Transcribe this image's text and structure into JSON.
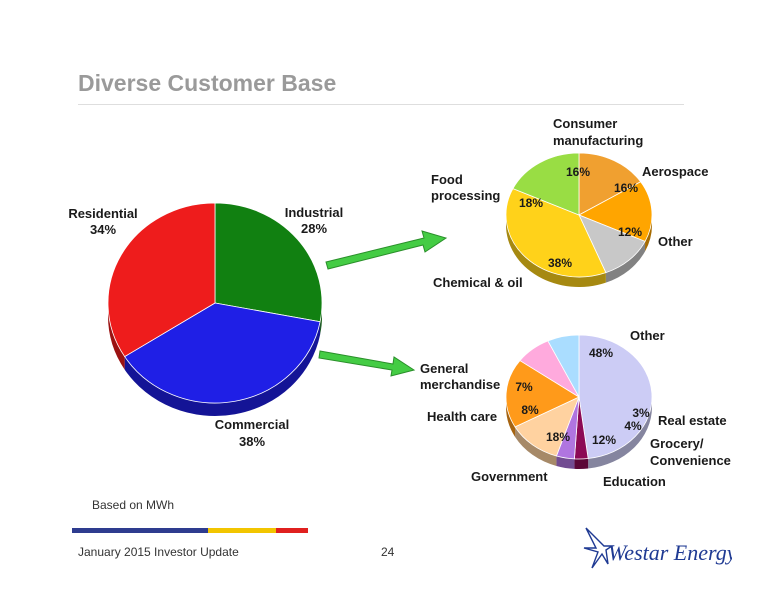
{
  "slide": {
    "title": "Diverse Customer Base",
    "note": "Based on MWh",
    "footer_left": "January 2015 Investor Update",
    "page_number": "24",
    "brand_bar_colors": [
      "#2e3c8f",
      "#f2c500",
      "#e0201f"
    ],
    "logo_text": "Westar Energy."
  },
  "chart_data": [
    {
      "type": "pie",
      "slices": [
        {
          "name": "Industrial",
          "value": 28,
          "label": "28%",
          "color": "#118011"
        },
        {
          "name": "Commercial",
          "value": 38,
          "label": "38%",
          "color": "#1f1fe6"
        },
        {
          "name": "Residential",
          "value": 34,
          "label": "34%",
          "color": "#ee1c1c"
        }
      ]
    },
    {
      "type": "pie",
      "slices": [
        {
          "name": "Consumer manufacturing",
          "value": 16,
          "label": "16%",
          "color": "#f0a030"
        },
        {
          "name": "Aerospace",
          "value": 16,
          "label": "16%",
          "color": "#ffa500"
        },
        {
          "name": "Other",
          "value": 12,
          "label": "12%",
          "color": "#c8c8c8"
        },
        {
          "name": "Chemical & oil",
          "value": 38,
          "label": "38%",
          "color": "#ffd21a"
        },
        {
          "name": "Food processing",
          "value": 18,
          "label": "18%",
          "color": "#99dd44"
        }
      ]
    },
    {
      "type": "pie",
      "slices": [
        {
          "name": "Other",
          "value": 48,
          "label": "48%",
          "color": "#ccccf5"
        },
        {
          "name": "Real estate",
          "value": 3,
          "label": "3%",
          "color": "#8c0a55"
        },
        {
          "name": "Grocery/ Convenience",
          "value": 4,
          "label": "4%",
          "color": "#b075e0"
        },
        {
          "name": "Education",
          "value": 12,
          "label": "12%",
          "color": "#ffd2a0"
        },
        {
          "name": "Government",
          "value": 18,
          "label": "18%",
          "color": "#ff9a1a"
        },
        {
          "name": "Health care",
          "value": 8,
          "label": "8%",
          "color": "#ffaadd"
        },
        {
          "name": "General merchandise",
          "value": 7,
          "label": "7%",
          "color": "#aaddff"
        }
      ]
    }
  ]
}
